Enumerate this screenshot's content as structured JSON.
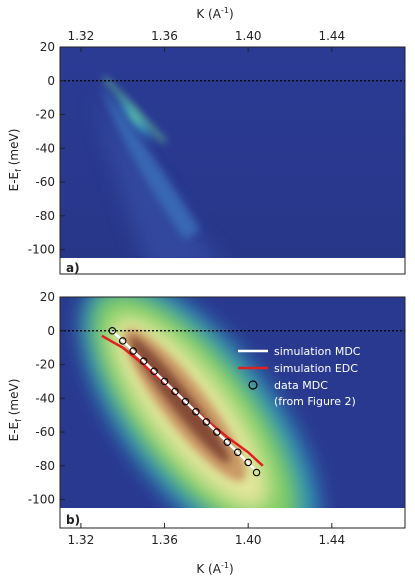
{
  "chart_data": [
    {
      "type": "heatmap",
      "panel_label": "a)",
      "x_label_top": "K (A",
      "x_label_sup": "-1",
      "x_label_close": ")",
      "ylabel_main": "E-E",
      "ylabel_sub": "f",
      "ylabel_unit": " (meV)",
      "xlim": [
        1.31,
        1.475
      ],
      "ylim": [
        -105,
        20
      ],
      "x_ticks": [
        "1.32",
        "1.36",
        "1.40",
        "1.44"
      ],
      "x_tick_values": [
        1.32,
        1.36,
        1.4,
        1.44
      ],
      "y_ticks": [
        "20",
        "0",
        "-20",
        "-40",
        "-60",
        "-80",
        "-100"
      ],
      "y_tick_values": [
        20,
        0,
        -20,
        -40,
        -60,
        -80,
        -100
      ],
      "fermi_level": 0,
      "intensity_ridge": [
        {
          "k": 1.333,
          "e": 5
        },
        {
          "k": 1.345,
          "e": -10
        },
        {
          "k": 1.357,
          "e": -25
        },
        {
          "k": 1.37,
          "e": -38
        }
      ],
      "colors": {
        "background": "#2a3990",
        "peak": "#5fd08a"
      }
    },
    {
      "type": "heatmap",
      "panel_label": "b)",
      "x_label_bottom": "K (A",
      "x_label_sup": "-1",
      "x_label_close": ")",
      "ylabel_main": "E-E",
      "ylabel_sub": "f",
      "ylabel_unit": " (meV)",
      "xlim": [
        1.31,
        1.475
      ],
      "ylim": [
        -105,
        20
      ],
      "x_ticks": [
        "1.32",
        "1.36",
        "1.40",
        "1.44"
      ],
      "x_tick_values": [
        1.32,
        1.36,
        1.4,
        1.44
      ],
      "y_ticks": [
        "20",
        "0",
        "-20",
        "-40",
        "-60",
        "-80",
        "-100"
      ],
      "y_tick_values": [
        20,
        0,
        -20,
        -40,
        -60,
        -80,
        -100
      ],
      "fermi_level": 0,
      "legend": [
        {
          "label": "simulation MDC",
          "color": "#ffffff",
          "kind": "line"
        },
        {
          "label": "simulation EDC",
          "color": "#e02020",
          "kind": "line"
        },
        {
          "label": "data MDC",
          "color": "#000000",
          "kind": "circle"
        },
        {
          "label": "(from Figure 2)",
          "kind": "text"
        }
      ],
      "series": [
        {
          "name": "simulation MDC",
          "color": "#ffffff",
          "x": [
            1.335,
            1.345,
            1.355,
            1.365,
            1.375,
            1.385,
            1.395,
            1.403
          ],
          "y": [
            0,
            -12,
            -24,
            -36,
            -48,
            -60,
            -72,
            -82
          ]
        },
        {
          "name": "simulation EDC",
          "color": "#e02020",
          "x": [
            1.33,
            1.34,
            1.35,
            1.36,
            1.37,
            1.38,
            1.39,
            1.4,
            1.407
          ],
          "y": [
            -3,
            -10,
            -20,
            -31,
            -42,
            -53,
            -63,
            -72,
            -80
          ]
        },
        {
          "name": "data MDC",
          "color": "#000000",
          "x": [
            1.335,
            1.34,
            1.345,
            1.35,
            1.355,
            1.36,
            1.365,
            1.37,
            1.375,
            1.38,
            1.385,
            1.39,
            1.395,
            1.4,
            1.404
          ],
          "y": [
            0,
            -6,
            -12,
            -18,
            -24,
            -30,
            -36,
            -42,
            -48,
            -54,
            -60,
            -66,
            -72,
            -78,
            -84
          ]
        }
      ],
      "colors": {
        "background": "#2a3990",
        "mid": "#66cc55",
        "core": "#8a4a32"
      }
    }
  ]
}
